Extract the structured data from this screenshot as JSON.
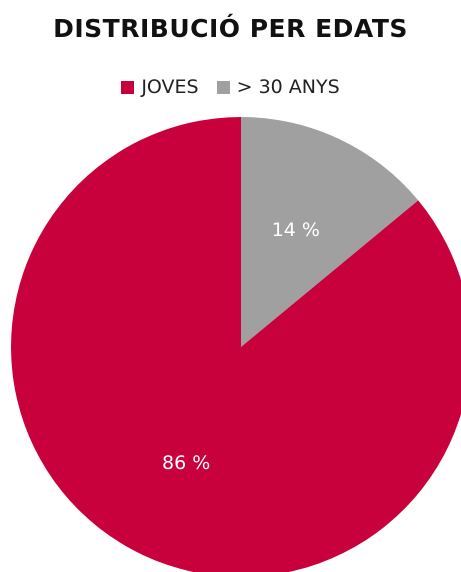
{
  "chart_data": {
    "type": "pie",
    "title": "DISTRIBUCIÓ PER EDATS",
    "legend_position": "top",
    "slices": [
      {
        "name": "> 30 ANYS",
        "value": 14,
        "label": "14 %",
        "color": "#a0a0a0"
      },
      {
        "name": "JOVES",
        "value": 86,
        "label": "86 %",
        "color": "#c8003c"
      }
    ],
    "legend": [
      {
        "name": "JOVES",
        "color": "#c8003c"
      },
      {
        "name": "> 30 ANYS",
        "color": "#a0a0a0"
      }
    ]
  }
}
